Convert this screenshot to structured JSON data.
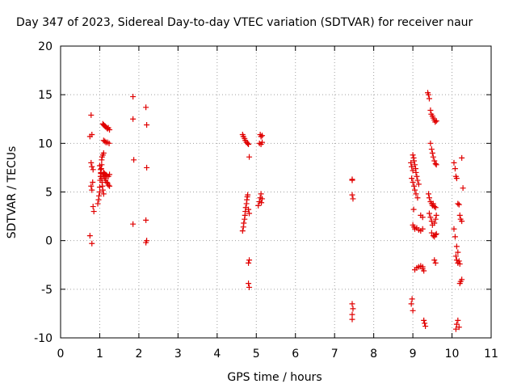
{
  "chart_data": {
    "type": "scatter",
    "title": "Day 347 of 2023, Sidereal Day-to-day VTEC variation (SDTVAR) for receiver naur",
    "xlabel": "GPS time / hours",
    "ylabel": "SDTVAR / TECUs",
    "xlim": [
      0,
      11
    ],
    "ylim": [
      -10,
      20
    ],
    "xticks": [
      0,
      1,
      2,
      3,
      4,
      5,
      6,
      7,
      8,
      9,
      10,
      11
    ],
    "xtick_labels": [
      "0",
      "1",
      "2",
      "3",
      "4",
      "5",
      "6",
      "7",
      "8",
      "9",
      "10",
      "11"
    ],
    "yticks": [
      -10,
      -5,
      0,
      5,
      10,
      15,
      20
    ],
    "ytick_labels": [
      "-10",
      "-5",
      "0",
      "5",
      "10",
      "15",
      "20"
    ],
    "grid": true,
    "marker": "+",
    "color": "#e00000",
    "series": [
      {
        "name": "SDTVAR",
        "x": [
          0.78,
          0.8,
          0.75,
          0.78,
          0.8,
          0.83,
          0.82,
          0.78,
          0.8,
          0.83,
          0.85,
          0.75,
          0.8,
          0.95,
          0.97,
          0.98,
          1.0,
          1.0,
          1.01,
          1.02,
          1.03,
          1.04,
          1.05,
          1.05,
          1.06,
          1.08,
          1.1,
          1.0,
          1.02,
          1.03,
          1.05,
          1.06,
          1.07,
          1.08,
          1.1,
          1.08,
          1.1,
          1.12,
          1.15,
          1.18,
          1.2,
          1.22,
          1.25,
          1.1,
          1.13,
          1.16,
          1.2,
          1.24,
          1.08,
          1.1,
          1.13,
          1.15,
          1.18,
          1.2,
          1.22,
          1.25,
          1.1,
          1.12,
          1.15,
          1.18,
          1.22,
          1.25,
          1.85,
          1.85,
          1.87,
          1.85,
          2.18,
          2.2,
          2.2,
          2.18,
          2.18,
          2.2,
          4.65,
          4.67,
          4.68,
          4.7,
          4.71,
          4.72,
          4.73,
          4.75,
          4.76,
          4.77,
          4.78,
          4.8,
          4.82,
          4.65,
          4.67,
          4.7,
          4.72,
          4.75,
          4.78,
          4.8,
          4.82,
          4.82,
          4.8,
          4.8,
          4.82,
          5.05,
          5.08,
          5.1,
          5.12,
          5.13,
          5.15,
          5.1,
          5.12,
          5.15,
          5.08,
          5.12,
          5.15,
          7.45,
          7.45,
          7.45,
          7.47,
          7.45,
          7.47,
          7.45,
          7.45,
          8.95,
          8.97,
          9.0,
          9.0,
          9.02,
          9.03,
          9.05,
          9.07,
          9.08,
          9.1,
          9.12,
          9.15,
          8.97,
          9.0,
          9.03,
          9.05,
          9.08,
          9.12,
          9.0,
          9.03,
          9.05,
          9.1,
          9.15,
          9.2,
          9.25,
          9.05,
          9.1,
          9.15,
          9.2,
          9.25,
          9.02,
          8.98,
          8.96,
          9.0,
          9.2,
          9.25,
          9.28,
          9.3,
          9.32,
          9.25,
          9.28,
          9.38,
          9.4,
          9.42,
          9.45,
          9.47,
          9.5,
          9.52,
          9.55,
          9.57,
          9.6,
          9.45,
          9.48,
          9.5,
          9.52,
          9.55,
          9.58,
          9.6,
          9.4,
          9.42,
          9.45,
          9.48,
          9.5,
          9.52,
          9.55,
          9.58,
          9.42,
          9.45,
          9.48,
          9.5,
          9.55,
          9.58,
          9.6,
          9.48,
          9.52,
          9.55,
          9.58,
          9.6,
          9.55,
          9.58,
          10.05,
          10.08,
          10.1,
          10.12,
          10.15,
          10.18,
          10.2,
          10.22,
          10.25,
          10.1,
          10.12,
          10.15,
          10.18,
          10.2,
          10.05,
          10.08,
          10.12,
          10.15,
          10.2,
          10.22,
          10.25,
          10.15,
          10.18,
          10.1,
          10.12,
          10.25,
          10.28
        ],
        "y": [
          12.9,
          10.9,
          10.7,
          8.0,
          7.6,
          7.3,
          6.0,
          5.6,
          5.2,
          3.5,
          3.0,
          0.5,
          -0.3,
          3.8,
          4.2,
          4.6,
          5.0,
          5.5,
          6.2,
          6.6,
          7.0,
          7.4,
          7.8,
          8.3,
          8.6,
          8.8,
          9.0,
          7.7,
          7.3,
          6.9,
          6.4,
          6.0,
          5.6,
          5.2,
          4.8,
          12.0,
          11.9,
          11.8,
          11.7,
          11.6,
          11.5,
          11.6,
          11.4,
          10.3,
          10.2,
          10.1,
          10.1,
          10.0,
          6.8,
          6.6,
          6.4,
          6.2,
          6.0,
          5.9,
          5.7,
          5.6,
          7.0,
          6.9,
          6.8,
          6.7,
          6.6,
          6.8,
          14.8,
          12.5,
          8.3,
          1.7,
          13.7,
          11.9,
          7.5,
          2.1,
          -0.2,
          0.0,
          1.0,
          1.4,
          1.8,
          2.2,
          2.6,
          3.0,
          3.4,
          3.8,
          4.2,
          4.5,
          4.7,
          3.2,
          2.8,
          10.9,
          10.7,
          10.5,
          10.3,
          10.1,
          10.0,
          9.9,
          8.6,
          -2.0,
          -2.3,
          -4.4,
          -4.8,
          3.6,
          4.0,
          4.4,
          4.8,
          3.9,
          4.3,
          10.9,
          10.7,
          10.8,
          10.0,
          9.9,
          10.1,
          6.3,
          6.2,
          4.7,
          4.3,
          -6.5,
          -7.0,
          -7.6,
          -8.1,
          8.0,
          7.6,
          7.2,
          8.8,
          8.5,
          8.2,
          7.8,
          7.4,
          7.0,
          6.6,
          6.2,
          5.8,
          6.4,
          6.0,
          5.6,
          5.2,
          4.8,
          4.4,
          1.6,
          1.4,
          1.2,
          1.3,
          1.1,
          1.0,
          1.2,
          -3.0,
          -2.8,
          -2.7,
          -2.6,
          -2.7,
          3.2,
          -6.0,
          -6.5,
          -7.2,
          2.6,
          2.4,
          -8.2,
          -8.5,
          -8.8,
          -2.9,
          -3.1,
          15.2,
          15.0,
          14.6,
          13.4,
          13.0,
          12.8,
          12.6,
          12.4,
          12.2,
          12.3,
          10.0,
          9.4,
          9.0,
          8.6,
          8.2,
          7.9,
          7.8,
          4.8,
          4.4,
          4.0,
          3.8,
          3.6,
          3.8,
          3.5,
          3.4,
          2.8,
          2.4,
          2.0,
          1.6,
          1.8,
          2.2,
          2.6,
          0.8,
          0.5,
          0.4,
          0.6,
          0.7,
          -2.0,
          -2.3,
          8.0,
          7.4,
          6.6,
          6.4,
          3.8,
          3.7,
          2.6,
          2.2,
          2.0,
          -1.6,
          -2.0,
          -2.3,
          -2.1,
          -2.4,
          1.2,
          0.4,
          -0.6,
          -1.2,
          -4.4,
          -4.2,
          -4.0,
          -8.2,
          -8.9,
          -9.1,
          -8.6,
          8.5,
          5.4
        ]
      }
    ]
  }
}
